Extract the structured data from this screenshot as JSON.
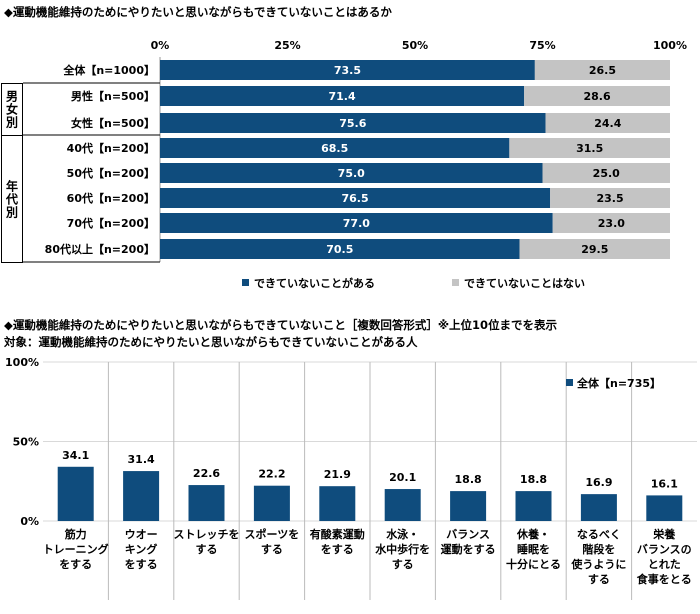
{
  "chart_data": [
    {
      "type": "bar",
      "orientation": "horizontal",
      "stacked": true,
      "title": "◆運動機能維持のためにやりたいと思いながらもできていないことはあるか",
      "categories": [
        "全体【n=1000】",
        "男性【n=500】",
        "女性【n=500】",
        "40代【n=200】",
        "50代【n=200】",
        "60代【n=200】",
        "70代【n=200】",
        "80代以上【n=200】"
      ],
      "groups": [
        {
          "label": "男女別",
          "rows": [
            1,
            2
          ]
        },
        {
          "label": "年代別",
          "rows": [
            3,
            4,
            5,
            6,
            7
          ]
        }
      ],
      "xticks": [
        "0%",
        "25%",
        "50%",
        "75%",
        "100%"
      ],
      "xlim": [
        0,
        100
      ],
      "legend_position": "bottom",
      "series": [
        {
          "name": "できていないことがある",
          "color": "#0f4c7d",
          "values": [
            73.5,
            71.4,
            75.6,
            68.5,
            75.0,
            76.5,
            77.0,
            70.5
          ],
          "labels": [
            "73.5",
            "71.4",
            "75.6",
            "68.5",
            "75.0",
            "76.5",
            "77.0",
            "70.5"
          ]
        },
        {
          "name": "できていないことはない",
          "color": "#c4c4c4",
          "values": [
            26.5,
            28.6,
            24.4,
            31.5,
            25.0,
            23.5,
            23.0,
            29.5
          ],
          "labels": [
            "26.5",
            "28.6",
            "24.4",
            "31.5",
            "25.0",
            "23.5",
            "23.0",
            "29.5"
          ]
        }
      ]
    },
    {
      "type": "bar",
      "title": "◆運動機能維持のためにやりたいと思いながらもできていないこと［複数回答形式］※上位10位までを表示",
      "subtitle": "対象：運動機能維持のためにやりたいと思いながらもできていないことがある人",
      "categories": [
        "筋力\nトレーニング\nをする",
        "ウオー\nキング\nをする",
        "ストレッチを\nする",
        "スポーツを\nする",
        "有酸素運動\nをする",
        "水泳・\n水中歩行を\nする",
        "バランス\n運動をする",
        "休養・\n睡眠を\n十分にとる",
        "なるべく\n階段を\n使うように\nする",
        "栄養\nバランスの\nとれた\n食事をとる"
      ],
      "yticks": [
        "0%",
        "50%",
        "100%"
      ],
      "ylim": [
        0,
        100
      ],
      "grid": true,
      "legend_position": "top-right",
      "series": [
        {
          "name": "全体【n=735】",
          "color": "#0f4c7d",
          "values": [
            34.1,
            31.4,
            22.6,
            22.2,
            21.9,
            20.1,
            18.8,
            18.8,
            16.9,
            16.1
          ],
          "labels": [
            "34.1",
            "31.4",
            "22.6",
            "22.2",
            "21.9",
            "20.1",
            "18.8",
            "18.8",
            "16.9",
            "16.1"
          ]
        }
      ]
    }
  ]
}
